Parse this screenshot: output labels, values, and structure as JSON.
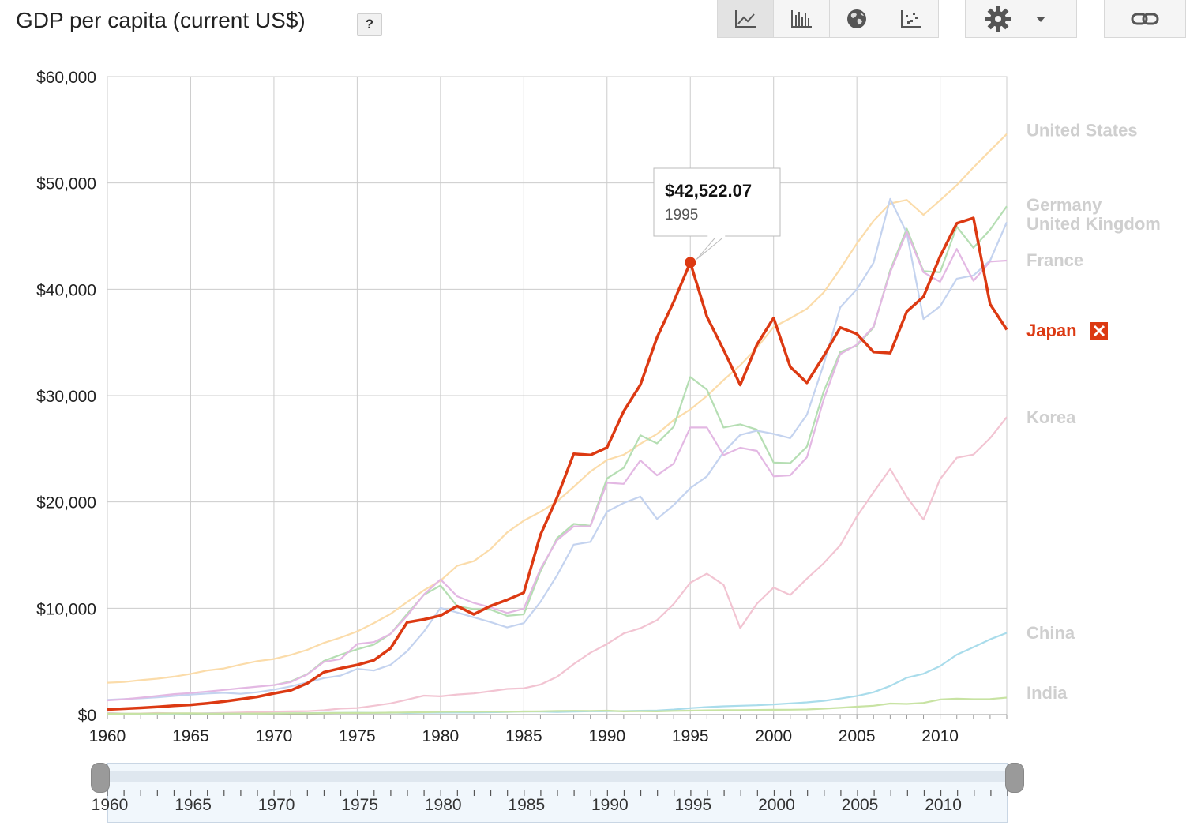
{
  "header": {
    "title": "GDP per capita (current US$)",
    "help_label": "?"
  },
  "toolbar": {
    "buttons": [
      {
        "name": "line-chart-button",
        "icon": "line-chart-icon",
        "active": true
      },
      {
        "name": "bar-chart-button",
        "icon": "bar-chart-icon",
        "active": false
      },
      {
        "name": "map-button",
        "icon": "globe-icon",
        "active": false
      },
      {
        "name": "scatter-button",
        "icon": "scatter-icon",
        "active": false
      },
      {
        "name": "settings-button",
        "icon": "gear-icon",
        "active": false
      },
      {
        "name": "link-button",
        "icon": "link-icon",
        "active": false
      }
    ]
  },
  "tooltip": {
    "value": "$42,522.07",
    "year": "1995"
  },
  "chart_data": {
    "type": "line",
    "title": "GDP per capita (current US$)",
    "x": [
      1960,
      1961,
      1962,
      1963,
      1964,
      1965,
      1966,
      1967,
      1968,
      1969,
      1970,
      1971,
      1972,
      1973,
      1974,
      1975,
      1976,
      1977,
      1978,
      1979,
      1980,
      1981,
      1982,
      1983,
      1984,
      1985,
      1986,
      1987,
      1988,
      1989,
      1990,
      1991,
      1992,
      1993,
      1994,
      1995,
      1996,
      1997,
      1998,
      1999,
      2000,
      2001,
      2002,
      2003,
      2004,
      2005,
      2006,
      2007,
      2008,
      2009,
      2010,
      2011,
      2012,
      2013,
      2014
    ],
    "xlim": [
      1960,
      2014
    ],
    "ylim": [
      0,
      60000
    ],
    "yticks": [
      0,
      10000,
      20000,
      30000,
      40000,
      50000,
      60000
    ],
    "ytick_labels": [
      "$0",
      "$10,000",
      "$20,000",
      "$30,000",
      "$40,000",
      "$50,000",
      "$60,000"
    ],
    "xticks": [
      1960,
      1965,
      1970,
      1975,
      1980,
      1985,
      1990,
      1995,
      2000,
      2005,
      2010
    ],
    "xtick_labels": [
      "1960",
      "1965",
      "1970",
      "1975",
      "1980",
      "1985",
      "1990",
      "1995",
      "2000",
      "2005",
      "2010"
    ],
    "grid": true,
    "legend": "right, labels at line ends",
    "highlight": {
      "series": "Japan",
      "x": 1995,
      "y": 42522.07
    },
    "series": [
      {
        "name": "United States",
        "color": "#fbdcaa",
        "label_color": "#cfcfcf",
        "values": [
          3000,
          3070,
          3240,
          3380,
          3570,
          3830,
          4150,
          4340,
          4700,
          5030,
          5230,
          5610,
          6090,
          6740,
          7240,
          7820,
          8610,
          9470,
          10590,
          11690,
          12600,
          13990,
          14430,
          15560,
          17130,
          18240,
          19070,
          20040,
          21420,
          22860,
          23950,
          24440,
          25460,
          26390,
          27690,
          28690,
          29970,
          31460,
          32850,
          34510,
          36450,
          37270,
          38170,
          39680,
          41920,
          44310,
          46440,
          48070,
          48400,
          47000,
          48370,
          49800,
          51460,
          53040,
          54600
        ],
        "line_width": 2.2
      },
      {
        "name": "Germany",
        "color": "#b5deb3",
        "label_color": "#cfcfcf",
        "values": [
          null,
          null,
          null,
          null,
          null,
          null,
          null,
          null,
          null,
          null,
          2760,
          3120,
          3800,
          5050,
          5630,
          6140,
          6580,
          7600,
          9470,
          11260,
          12140,
          10200,
          9920,
          9870,
          9290,
          9430,
          13470,
          16600,
          17930,
          17760,
          22220,
          23200,
          26270,
          25510,
          27070,
          31750,
          30560,
          27000,
          27300,
          26800,
          23700,
          23650,
          25200,
          30360,
          34100,
          34700,
          36400,
          41800,
          45700,
          41700,
          41600,
          45900,
          43900,
          45600,
          47800
        ],
        "line_width": 2.2
      },
      {
        "name": "United Kingdom",
        "color": "#c4d3ef",
        "label_color": "#cfcfcf",
        "values": [
          1380,
          1460,
          1530,
          1620,
          1750,
          1880,
          1980,
          2050,
          1950,
          2100,
          2350,
          2650,
          3030,
          3430,
          3670,
          4300,
          4140,
          4680,
          5970,
          7800,
          10030,
          9600,
          9150,
          8700,
          8200,
          8600,
          10600,
          13100,
          15980,
          16240,
          19100,
          19900,
          20500,
          18400,
          19700,
          21300,
          22400,
          24700,
          26300,
          26700,
          26400,
          26000,
          28200,
          32900,
          38300,
          40000,
          42500,
          48500,
          45300,
          37200,
          38400,
          41000,
          41300,
          42700,
          46300
        ],
        "line_width": 2.2
      },
      {
        "name": "France",
        "color": "#e3b8e3",
        "label_color": "#cfcfcf",
        "values": [
          1340,
          1440,
          1590,
          1750,
          1920,
          2030,
          2170,
          2320,
          2480,
          2630,
          2780,
          3050,
          3770,
          4950,
          5220,
          6640,
          6820,
          7590,
          9300,
          11290,
          12710,
          11130,
          10500,
          10090,
          9560,
          9960,
          13700,
          16400,
          17700,
          17700,
          21800,
          21700,
          23900,
          22500,
          23600,
          27000,
          27000,
          24400,
          25100,
          24800,
          22400,
          22500,
          24200,
          29600,
          33900,
          34800,
          36500,
          41600,
          45400,
          41600,
          40700,
          43800,
          40800,
          42600,
          42700
        ],
        "line_width": 2.2
      },
      {
        "name": "Japan",
        "color": "#dc3912",
        "label_color": "#dc3912",
        "values": [
          480,
          560,
          630,
          720,
          830,
          920,
          1060,
          1230,
          1450,
          1670,
          2000,
          2270,
          2940,
          3990,
          4350,
          4670,
          5110,
          6230,
          8680,
          8950,
          9310,
          10210,
          9430,
          10210,
          10790,
          11460,
          16900,
          20420,
          24520,
          24410,
          25120,
          28530,
          31020,
          35470,
          38810,
          42522.07,
          37420,
          34300,
          31000,
          34800,
          37300,
          32700,
          31200,
          33700,
          36400,
          35800,
          34100,
          34000,
          37900,
          39300,
          43100,
          46200,
          46700,
          38600,
          36200
        ],
        "line_width": 3.5
      },
      {
        "name": "Korea",
        "color": "#f2c4d2",
        "label_color": "#cfcfcf",
        "values": [
          155,
          93,
          106,
          146,
          124,
          108,
          133,
          161,
          198,
          243,
          279,
          301,
          323,
          406,
          563,
          616,
          830,
          1052,
          1406,
          1784,
          1715,
          1883,
          1992,
          2198,
          2413,
          2472,
          2823,
          3555,
          4749,
          5817,
          6642,
          7636,
          8126,
          8884,
          10385,
          12404,
          13255,
          12197,
          8134,
          10432,
          11948,
          11253,
          12789,
          14219,
          15922,
          18640,
          20917,
          23101,
          20475,
          18339,
          22151,
          24156,
          24454,
          25998,
          27970
        ],
        "line_width": 2.2
      },
      {
        "name": "China",
        "color": "#a9dceb",
        "label_color": "#cfcfcf",
        "values": [
          90,
          76,
          70,
          74,
          85,
          98,
          104,
          97,
          91,
          100,
          112,
          118,
          131,
          157,
          160,
          178,
          165,
          185,
          156,
          183,
          193,
          197,
          203,
          225,
          250,
          294,
          281,
          252,
          283,
          310,
          317,
          333,
          366,
          377,
          473,
          610,
          709,
          782,
          829,
          873,
          959,
          1053,
          1149,
          1289,
          1509,
          1753,
          2099,
          2695,
          3471,
          3838,
          4561,
          5634,
          6338,
          7078,
          7684
        ],
        "line_width": 2.2
      },
      {
        "name": "India",
        "color": "#c8e3a3",
        "label_color": "#cfcfcf",
        "values": [
          82,
          85,
          89,
          101,
          115,
          119,
          90,
          96,
          99,
          107,
          112,
          118,
          122,
          143,
          163,
          158,
          161,
          186,
          206,
          224,
          267,
          272,
          275,
          292,
          278,
          297,
          311,
          340,
          355,
          346,
          368,
          307,
          320,
          302,
          346,
          374,
          399,
          415,
          413,
          441,
          452,
          460,
          480,
          560,
          640,
          740,
          830,
          1040,
          1000,
          1100,
          1420,
          1500,
          1450,
          1460,
          1600
        ],
        "line_width": 2.2
      }
    ],
    "end_labels": [
      {
        "series": "United States",
        "text": "United States",
        "y": 54600
      },
      {
        "series": "Germany",
        "text": "Germany",
        "y": 48000
      },
      {
        "series": "United Kingdom",
        "text": "United Kingdom",
        "y": 46200
      },
      {
        "series": "France",
        "text": "France",
        "y": 42800
      },
      {
        "series": "Japan",
        "text": "Japan",
        "y": 36200
      },
      {
        "series": "Korea",
        "text": "Korea",
        "y": 28000
      },
      {
        "series": "China",
        "text": "China",
        "y": 7700
      },
      {
        "series": "India",
        "text": "India",
        "y": 2000
      }
    ],
    "remove_series_icon": "close-box-icon"
  },
  "navigator": {
    "range": [
      1960,
      2014
    ],
    "labels": [
      "1960",
      "1965",
      "1970",
      "1975",
      "1980",
      "1985",
      "1990",
      "1995",
      "2000",
      "2005",
      "2010"
    ]
  }
}
